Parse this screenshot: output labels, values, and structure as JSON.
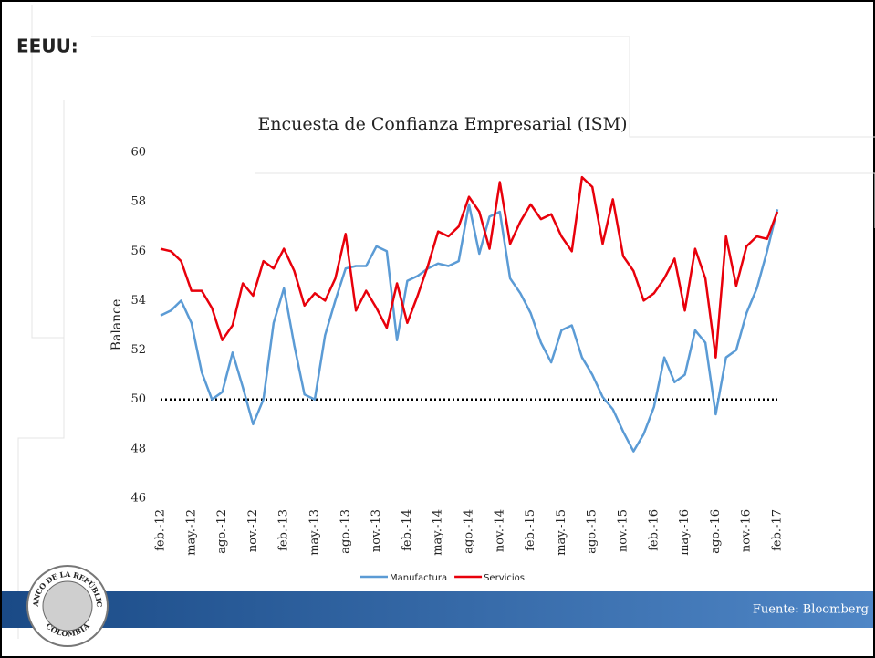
{
  "slide": {
    "heading": "EEUU:",
    "footer": "Fuente: Bloomberg",
    "logo": [
      "BANCO DE LA REPÚBLICA",
      "COLOMBIA"
    ]
  },
  "chart_data": {
    "type": "line",
    "title": "Encuesta de Confianza Empresarial (ISM)",
    "ylabel": "Balance",
    "categories": [
      "feb.-12",
      null,
      null,
      "may.-12",
      null,
      null,
      "ago.-12",
      null,
      null,
      "nov.-12",
      null,
      null,
      "feb.-13",
      null,
      null,
      "may.-13",
      null,
      null,
      "ago.-13",
      null,
      null,
      "nov.-13",
      null,
      null,
      "feb.-14",
      null,
      null,
      "may.-14",
      null,
      null,
      "ago.-14",
      null,
      null,
      "nov.-14",
      null,
      null,
      "feb.-15",
      null,
      null,
      "may.-15",
      null,
      null,
      "ago.-15",
      null,
      null,
      "nov.-15",
      null,
      null,
      "feb.-16",
      null,
      null,
      "may.-16",
      null,
      null,
      "ago.-16",
      null,
      null,
      "nov.-16",
      null,
      null,
      "feb.-17"
    ],
    "series": [
      {
        "name": "Manufactura",
        "color": "#5b9bd5",
        "values": [
          53.4,
          53.6,
          54.0,
          53.1,
          51.1,
          50.0,
          50.3,
          51.9,
          50.5,
          49.0,
          50.0,
          53.1,
          54.5,
          52.2,
          50.2,
          50.0,
          52.6,
          54.0,
          55.3,
          55.4,
          55.4,
          56.2,
          56.0,
          52.4,
          54.8,
          55.0,
          55.3,
          55.5,
          55.4,
          55.6,
          57.9,
          55.9,
          57.4,
          57.6,
          54.9,
          54.3,
          53.5,
          52.3,
          51.5,
          52.8,
          53.0,
          51.7,
          51.0,
          50.1,
          49.6,
          48.7,
          47.9,
          48.6,
          49.7,
          51.7,
          50.7,
          51.0,
          52.8,
          52.3,
          49.4,
          51.7,
          52.0,
          53.5,
          54.5,
          56.0,
          57.7
        ]
      },
      {
        "name": "Servicios",
        "color": "#e8000b",
        "values": [
          56.1,
          56.0,
          55.6,
          54.4,
          54.4,
          53.7,
          52.4,
          53.0,
          54.7,
          54.2,
          55.6,
          55.3,
          56.1,
          55.2,
          53.8,
          54.3,
          54.0,
          54.9,
          56.7,
          53.6,
          54.4,
          53.7,
          52.9,
          54.7,
          53.1,
          54.2,
          55.4,
          56.8,
          56.6,
          57.0,
          58.2,
          57.6,
          56.1,
          58.8,
          56.3,
          57.2,
          57.9,
          57.3,
          57.5,
          56.6,
          56.0,
          59.0,
          58.6,
          56.3,
          58.1,
          55.8,
          55.2,
          54.0,
          54.3,
          54.9,
          55.7,
          53.6,
          56.1,
          54.9,
          51.7,
          56.6,
          54.6,
          56.2,
          56.6,
          56.5,
          57.6
        ]
      }
    ],
    "reference_line": 50,
    "ylim": [
      46,
      60
    ],
    "yticks": [
      46,
      48,
      50,
      52,
      54,
      56,
      58,
      60
    ],
    "grid": false,
    "legend": "bottom"
  }
}
